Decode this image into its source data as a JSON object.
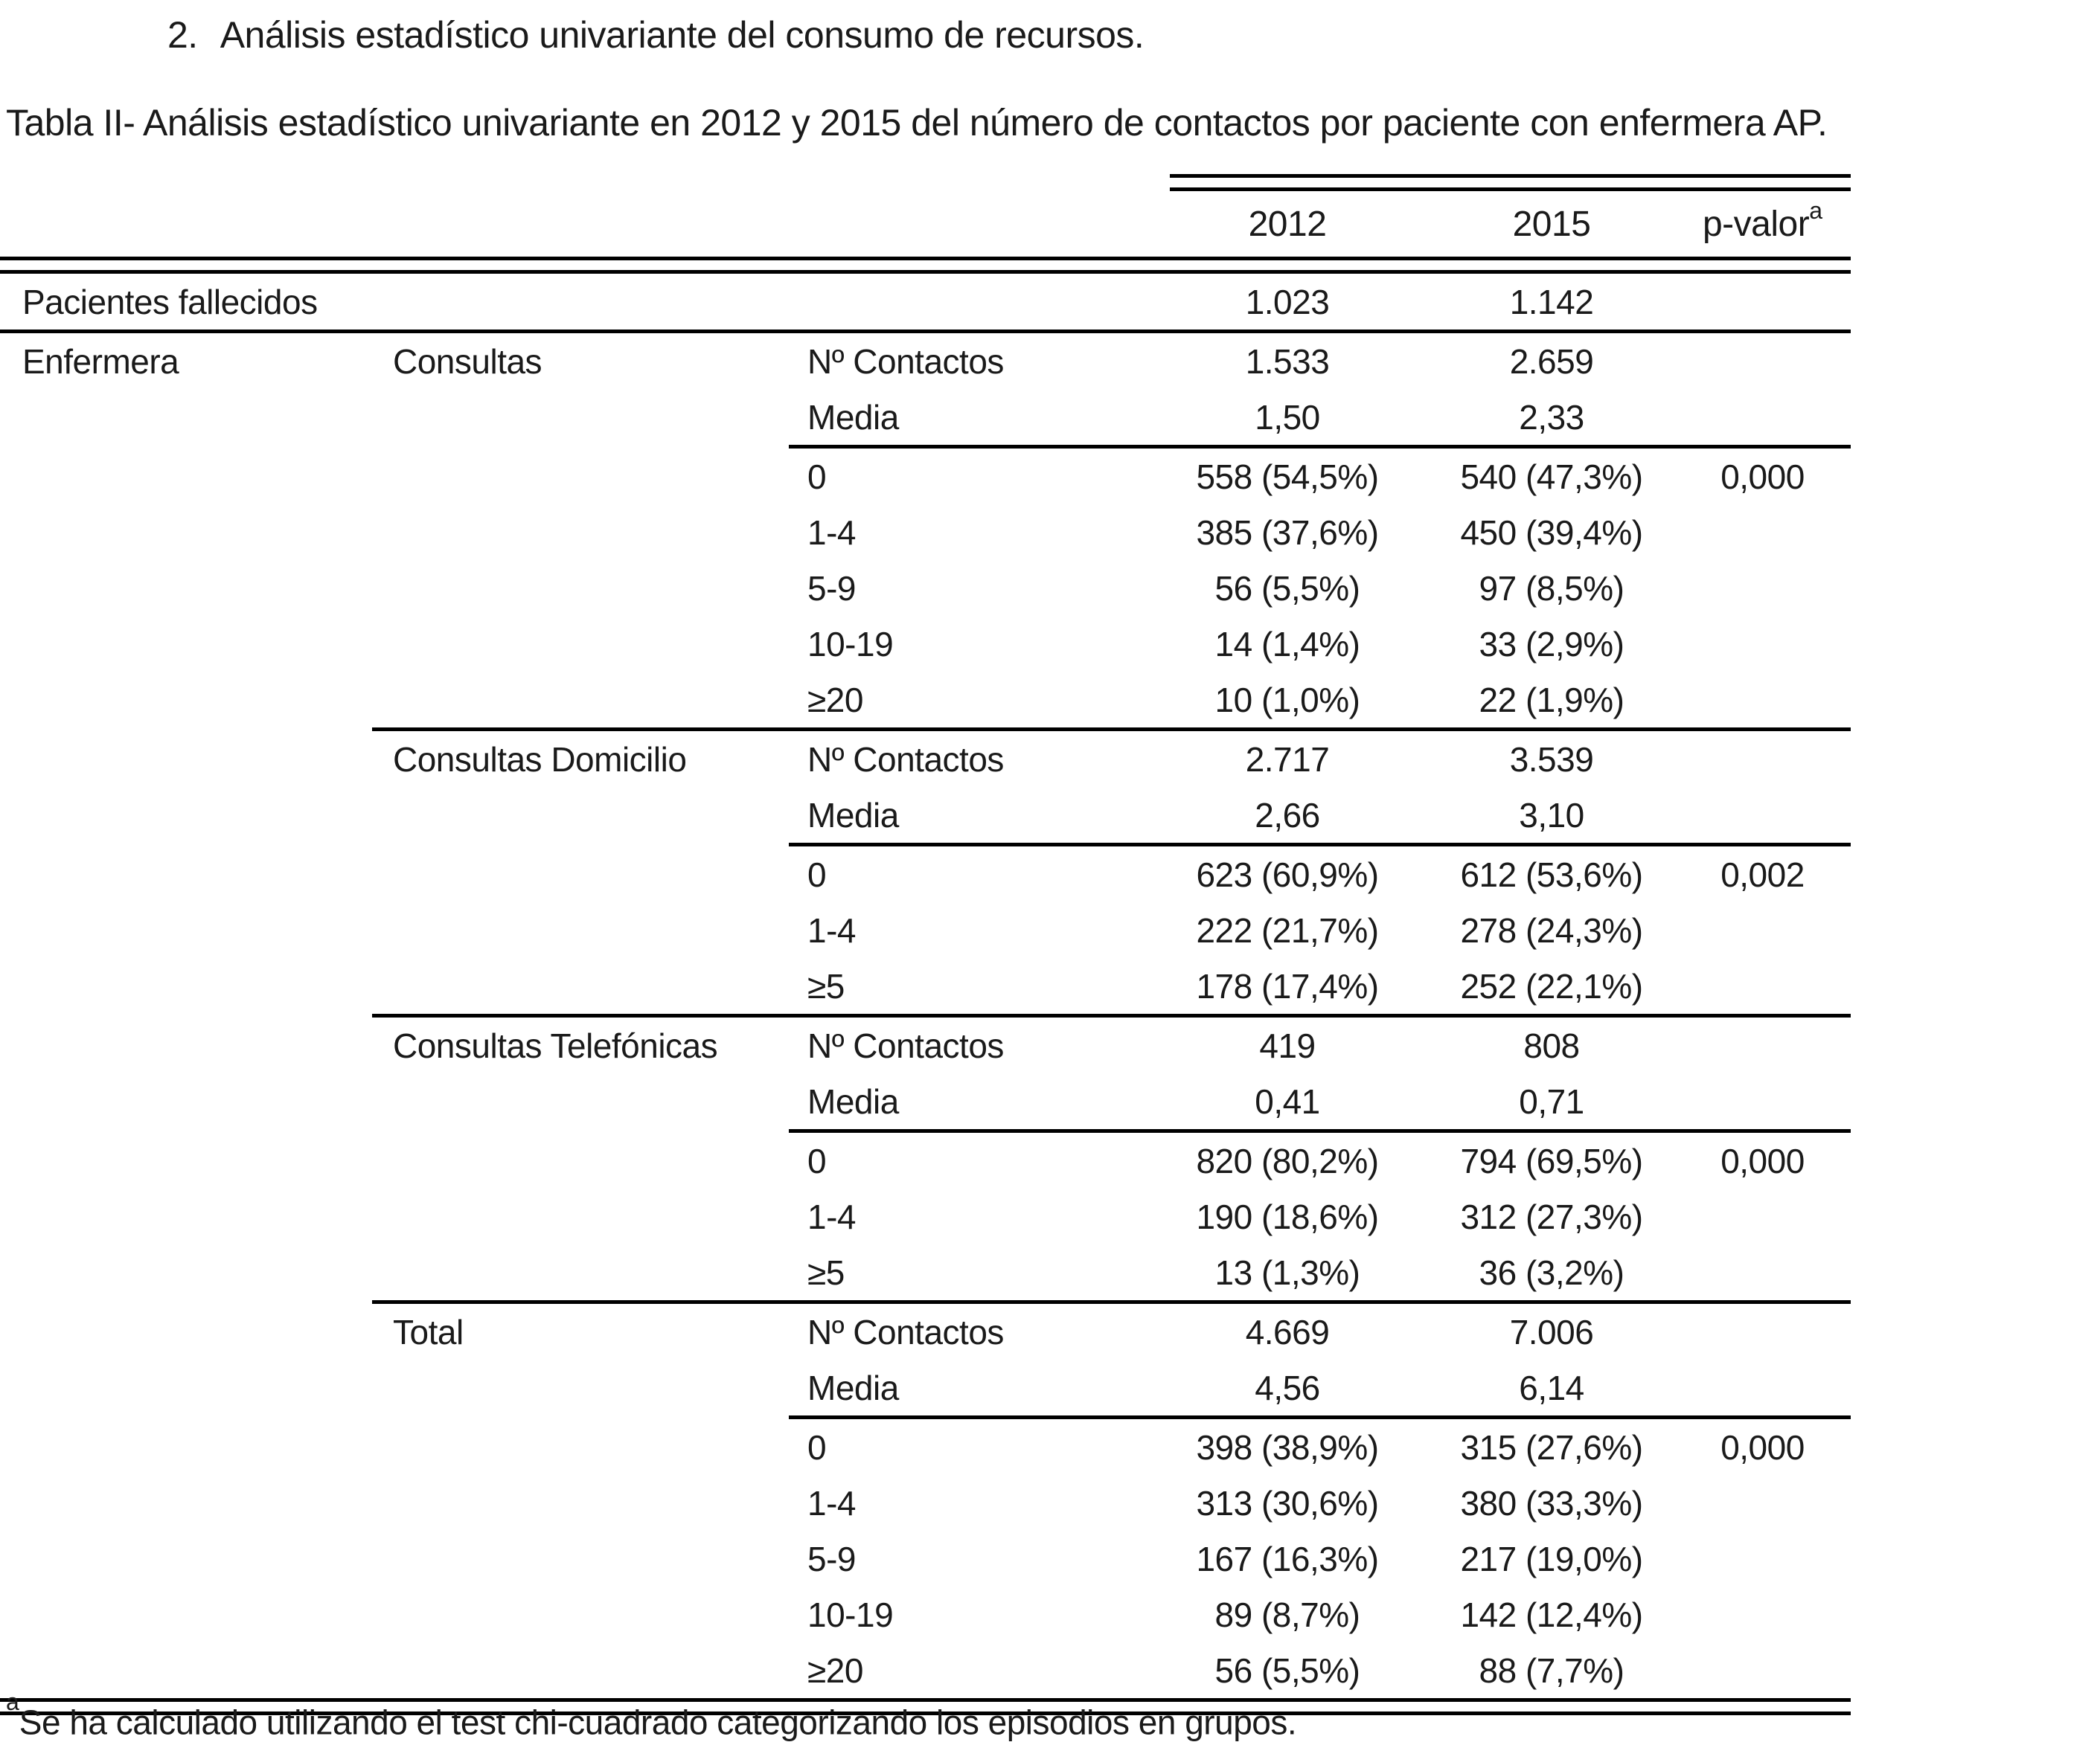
{
  "page": {
    "heading_number": "2.",
    "heading_text": "Análisis estadístico univariante del consumo de recursos.",
    "caption": "Tabla II- Análisis estadístico univariante en 2012 y 2015 del número de contactos por paciente con enfermera AP."
  },
  "table": {
    "header": {
      "y2012": "2012",
      "y2015": "2015",
      "pvalor": "p-valor",
      "pvalor_sup": "a"
    },
    "rows": [
      {
        "c1": "Pacientes fallecidos",
        "y2012": "1.023",
        "y2015": "1.142"
      },
      {
        "type": "rule",
        "span": "full"
      },
      {
        "c1": "Enfermera",
        "c2": "Consultas",
        "c3": "Nº Contactos",
        "y2012": "1.533",
        "y2015": "2.659"
      },
      {
        "c3": "Media",
        "y2012": "1,50",
        "y2015": "2,33"
      },
      {
        "type": "rule",
        "span": "measure"
      },
      {
        "c3": "0",
        "y2012": "558 (54,5%)",
        "y2015": "540 (47,3%)",
        "p": "0,000"
      },
      {
        "c3": "1-4",
        "y2012": "385 (37,6%)",
        "y2015": "450 (39,4%)"
      },
      {
        "c3": "5-9",
        "y2012": "56 (5,5%)",
        "y2015": "97 (8,5%)"
      },
      {
        "c3": "10-19",
        "y2012": "14 (1,4%)",
        "y2015": "33 (2,9%)"
      },
      {
        "c3": "≥20",
        "y2012": "10 (1,0%)",
        "y2015": "22 (1,9%)"
      },
      {
        "type": "rule",
        "span": "subgroup"
      },
      {
        "c2": "Consultas Domicilio",
        "c3": "Nº Contactos",
        "y2012": "2.717",
        "y2015": "3.539"
      },
      {
        "c3": "Media",
        "y2012": "2,66",
        "y2015": "3,10"
      },
      {
        "type": "rule",
        "span": "measure"
      },
      {
        "c3": "0",
        "y2012": "623 (60,9%)",
        "y2015": "612 (53,6%)",
        "p": "0,002"
      },
      {
        "c3": "1-4",
        "y2012": "222 (21,7%)",
        "y2015": "278 (24,3%)"
      },
      {
        "c3": "≥5",
        "y2012": "178 (17,4%)",
        "y2015": "252 (22,1%)"
      },
      {
        "type": "rule",
        "span": "subgroup"
      },
      {
        "c2": "Consultas Telefónicas",
        "c3": "Nº Contactos",
        "y2012": "419",
        "y2015": "808"
      },
      {
        "c3": "Media",
        "y2012": "0,41",
        "y2015": "0,71"
      },
      {
        "type": "rule",
        "span": "measure"
      },
      {
        "c3": "0",
        "y2012": "820 (80,2%)",
        "y2015": "794 (69,5%)",
        "p": "0,000"
      },
      {
        "c3": "1-4",
        "y2012": "190 (18,6%)",
        "y2015": "312 (27,3%)"
      },
      {
        "c3": "≥5",
        "y2012": "13 (1,3%)",
        "y2015": "36 (3,2%)"
      },
      {
        "type": "rule",
        "span": "subgroup"
      },
      {
        "c2": "Total",
        "c3": "Nº Contactos",
        "y2012": "4.669",
        "y2015": "7.006"
      },
      {
        "c3": "Media",
        "y2012": "4,56",
        "y2015": "6,14"
      },
      {
        "type": "rule",
        "span": "measure"
      },
      {
        "c3": "0",
        "y2012": "398 (38,9%)",
        "y2015": "315 (27,6%)",
        "p": "0,000"
      },
      {
        "c3": "1-4",
        "y2012": "313 (30,6%)",
        "y2015": "380 (33,3%)"
      },
      {
        "c3": "5-9",
        "y2012": "167 (16,3%)",
        "y2015": "217 (19,0%)"
      },
      {
        "c3": "10-19",
        "y2012": "89 (8,7%)",
        "y2015": "142 (12,4%)"
      },
      {
        "c3": "≥20",
        "y2012": "56 (5,5%)",
        "y2015": "88 (7,7%)"
      }
    ]
  },
  "footnote": {
    "sup": "a",
    "text": "Se ha calculado utilizando el test chi-cuadrado categorizando los episodios en grupos."
  }
}
